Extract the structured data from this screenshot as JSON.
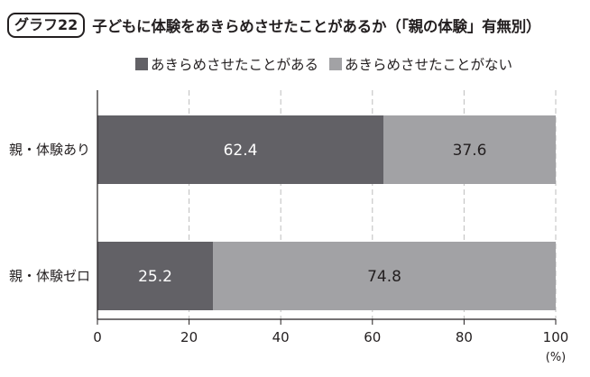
{
  "header": {
    "badge": "グラフ22",
    "title": "子どもに体験をあきらめさせたことがあるか（「親の体験」有無別）"
  },
  "colors": {
    "dark": "#626166",
    "light": "#a2a2a5",
    "grid": "#bdbdbd",
    "axis": "#231f20"
  },
  "chart_data": {
    "type": "bar",
    "orientation": "horizontal",
    "stacked": true,
    "title": "子どもに体験をあきらめさせたことがあるか（「親の体験」有無別）",
    "categories": [
      "親・体験あり",
      "親・体験ゼロ"
    ],
    "series": [
      {
        "name": "あきらめさせたことがある",
        "values": [
          62.4,
          25.2
        ]
      },
      {
        "name": "あきらめさせたことがない",
        "values": [
          37.6,
          74.8
        ]
      }
    ],
    "value_labels": [
      [
        "62.4",
        "25.2"
      ],
      [
        "37.6",
        "74.8"
      ]
    ],
    "xlim": [
      0,
      100
    ],
    "ticks": [
      "0",
      "20",
      "40",
      "60",
      "80",
      "100"
    ],
    "unit": "(%)",
    "grid": "vertical dashed",
    "legend": "top"
  }
}
